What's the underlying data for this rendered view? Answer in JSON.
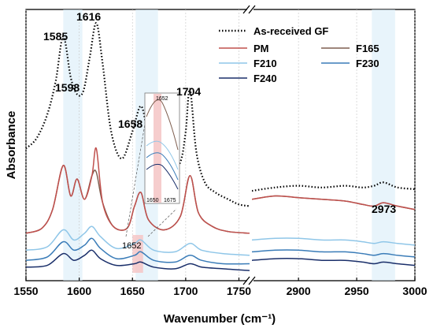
{
  "chart_data": {
    "type": "line",
    "xlabel": "Wavenumber (cm⁻¹)",
    "ylabel": "Absorbance",
    "axis_break": true,
    "panels": [
      {
        "xlim": [
          1550,
          1760
        ],
        "ticks": [
          1550,
          1600,
          1650,
          1700,
          1750
        ]
      },
      {
        "xlim": [
          2860,
          3000
        ],
        "ticks": [
          2900,
          2950,
          3000
        ]
      }
    ],
    "grid": "vertical-dotted",
    "highlight_bands": [
      [
        1585,
        1603
      ],
      [
        1653,
        1674
      ],
      [
        2963,
        2983
      ]
    ],
    "legend_position": "top-right",
    "annotations": [
      "1585",
      "1598",
      "1616",
      "1658",
      "1704",
      "1652",
      "2973"
    ],
    "inset": {
      "label": "1652",
      "ticks": [
        "1650",
        "1675"
      ]
    },
    "series": [
      {
        "name": "As-received GF",
        "color": "#000000",
        "style": "dotted",
        "offset": 0.4,
        "left_x": [
          1550,
          1560,
          1570,
          1578,
          1585,
          1592,
          1598,
          1604,
          1610,
          1616,
          1622,
          1630,
          1640,
          1650,
          1658,
          1665,
          1675,
          1685,
          1695,
          1700,
          1704,
          1710,
          1718,
          1728,
          1740,
          1750,
          1760
        ],
        "left_y": [
          0.78,
          0.84,
          0.98,
          1.18,
          1.44,
          1.2,
          1.1,
          1.12,
          1.32,
          1.52,
          1.28,
          0.88,
          0.72,
          0.88,
          1.03,
          0.86,
          0.68,
          0.64,
          0.7,
          0.88,
          1.13,
          0.76,
          0.58,
          0.52,
          0.48,
          0.45,
          0.44
        ],
        "right_x": [
          2860,
          2880,
          2900,
          2920,
          2940,
          2955,
          2965,
          2973,
          2985,
          3000
        ],
        "right_y": [
          0.53,
          0.55,
          0.56,
          0.55,
          0.56,
          0.55,
          0.56,
          0.58,
          0.55,
          0.54
        ]
      },
      {
        "name": "PM",
        "color": "#c0504d",
        "offset": 0.24,
        "left_x": [
          1550,
          1565,
          1575,
          1585,
          1592,
          1598,
          1605,
          1612,
          1616,
          1622,
          1632,
          1645,
          1652,
          1658,
          1665,
          1680,
          1695,
          1704,
          1712,
          1725,
          1740,
          1760
        ],
        "left_y": [
          0.28,
          0.31,
          0.42,
          0.68,
          0.5,
          0.6,
          0.48,
          0.62,
          0.78,
          0.46,
          0.32,
          0.31,
          0.44,
          0.52,
          0.36,
          0.3,
          0.38,
          0.62,
          0.4,
          0.32,
          0.29,
          0.28
        ],
        "right_x": [
          2860,
          2880,
          2900,
          2920,
          2940,
          2955,
          2965,
          2973,
          2985,
          3000
        ],
        "right_y": [
          0.48,
          0.5,
          0.49,
          0.48,
          0.47,
          0.45,
          0.44,
          0.46,
          0.44,
          0.42
        ]
      },
      {
        "name": "F165",
        "color": "#7f5f50",
        "offset": 0.24,
        "left_x": [
          1550,
          1565,
          1575,
          1585,
          1592,
          1598,
          1605,
          1612,
          1616,
          1622,
          1632,
          1645,
          1652,
          1658,
          1665,
          1680,
          1695,
          1704,
          1712,
          1725,
          1740,
          1760
        ],
        "left_y": [
          0.28,
          0.31,
          0.42,
          0.68,
          0.5,
          0.6,
          0.48,
          0.62,
          0.64,
          0.46,
          0.32,
          0.31,
          0.44,
          0.52,
          0.36,
          0.3,
          0.38,
          0.62,
          0.4,
          0.32,
          0.29,
          0.28
        ],
        "right_x": [
          2860,
          2880,
          2900,
          2920,
          2940,
          2955,
          2965,
          2973,
          2985,
          3000
        ],
        "right_y": [
          0.48,
          0.5,
          0.49,
          0.48,
          0.47,
          0.45,
          0.44,
          0.46,
          0.44,
          0.42
        ]
      },
      {
        "name": "F210",
        "color": "#8fc6e8",
        "offset": 0.15,
        "left_x": [
          1550,
          1570,
          1585,
          1595,
          1605,
          1612,
          1620,
          1635,
          1652,
          1658,
          1670,
          1690,
          1704,
          1715,
          1735,
          1760
        ],
        "left_y": [
          0.18,
          0.2,
          0.3,
          0.24,
          0.28,
          0.32,
          0.26,
          0.19,
          0.22,
          0.24,
          0.18,
          0.17,
          0.22,
          0.18,
          0.16,
          0.15
        ],
        "right_x": [
          2860,
          2880,
          2900,
          2920,
          2940,
          2955,
          2965,
          2973,
          2985,
          3000
        ],
        "right_y": [
          0.24,
          0.25,
          0.25,
          0.24,
          0.24,
          0.23,
          0.22,
          0.23,
          0.22,
          0.21
        ]
      },
      {
        "name": "F230",
        "color": "#3a7cb8",
        "offset": 0.1,
        "left_x": [
          1550,
          1570,
          1585,
          1595,
          1605,
          1612,
          1620,
          1635,
          1652,
          1658,
          1670,
          1690,
          1704,
          1715,
          1735,
          1760
        ],
        "left_y": [
          0.12,
          0.14,
          0.23,
          0.18,
          0.21,
          0.25,
          0.19,
          0.13,
          0.15,
          0.17,
          0.12,
          0.11,
          0.15,
          0.12,
          0.1,
          0.1
        ],
        "right_x": [
          2860,
          2880,
          2900,
          2920,
          2940,
          2955,
          2965,
          2973,
          2985,
          3000
        ],
        "right_y": [
          0.17,
          0.18,
          0.18,
          0.17,
          0.17,
          0.16,
          0.15,
          0.16,
          0.15,
          0.14
        ]
      },
      {
        "name": "F240",
        "color": "#1a2f6a",
        "offset": 0.06,
        "left_x": [
          1550,
          1570,
          1585,
          1595,
          1605,
          1612,
          1620,
          1635,
          1652,
          1658,
          1670,
          1690,
          1704,
          1715,
          1735,
          1760
        ],
        "left_y": [
          0.08,
          0.09,
          0.16,
          0.12,
          0.15,
          0.18,
          0.13,
          0.09,
          0.1,
          0.11,
          0.08,
          0.07,
          0.1,
          0.08,
          0.07,
          0.06
        ],
        "right_x": [
          2860,
          2880,
          2900,
          2920,
          2940,
          2955,
          2965,
          2973,
          2985,
          3000
        ],
        "right_y": [
          0.12,
          0.13,
          0.13,
          0.12,
          0.12,
          0.11,
          0.1,
          0.11,
          0.1,
          0.09
        ]
      }
    ]
  }
}
